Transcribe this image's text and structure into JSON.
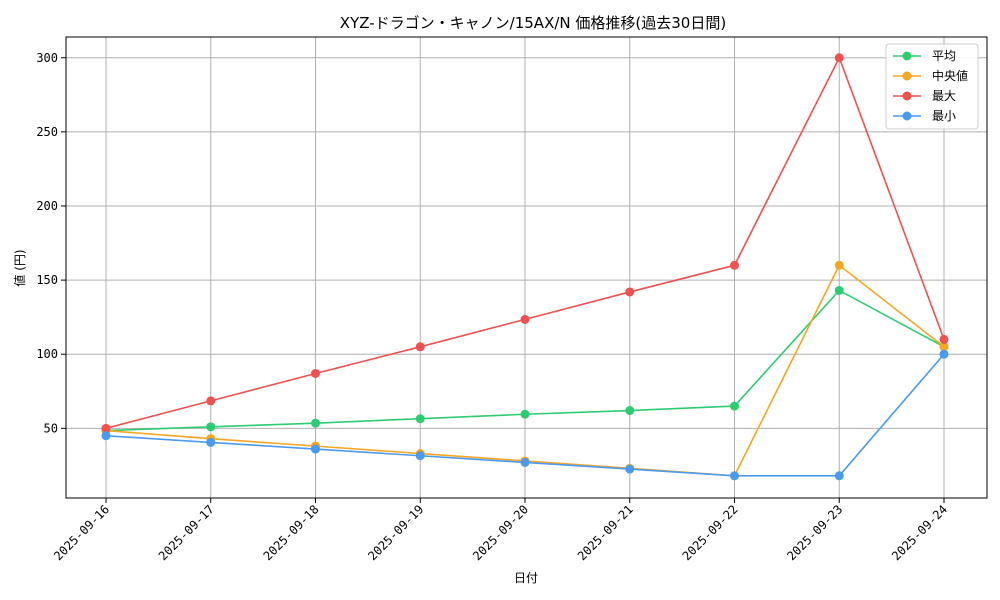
{
  "chart_data": {
    "type": "line",
    "title": "XYZ-ドラゴン・キャノン/15AX/N 価格推移(過去30日間)",
    "xlabel": "日付",
    "ylabel": "値 (円)",
    "categories": [
      "2025-09-16",
      "2025-09-17",
      "2025-09-18",
      "2025-09-19",
      "2025-09-20",
      "2025-09-21",
      "2025-09-22",
      "2025-09-23",
      "2025-09-24"
    ],
    "ylim": [
      3,
      314
    ],
    "yticks": [
      50,
      100,
      150,
      200,
      250,
      300
    ],
    "grid": true,
    "legend_position": "top-right",
    "series": [
      {
        "name": "平均",
        "color": "#2ecc71",
        "values": [
          48.5,
          51,
          53.5,
          56.5,
          59.5,
          62,
          65,
          143,
          105
        ]
      },
      {
        "name": "中央値",
        "color": "#f5a623",
        "values": [
          48.5,
          43,
          38,
          33,
          28,
          23,
          18,
          160,
          105
        ]
      },
      {
        "name": "最大",
        "color": "#ef5050",
        "values": [
          50,
          68.5,
          87,
          105,
          123.5,
          142,
          160,
          300,
          110
        ]
      },
      {
        "name": "最小",
        "color": "#4a9af0",
        "values": [
          45,
          40.5,
          36,
          31.5,
          27,
          22.5,
          18,
          18,
          100
        ]
      }
    ]
  }
}
